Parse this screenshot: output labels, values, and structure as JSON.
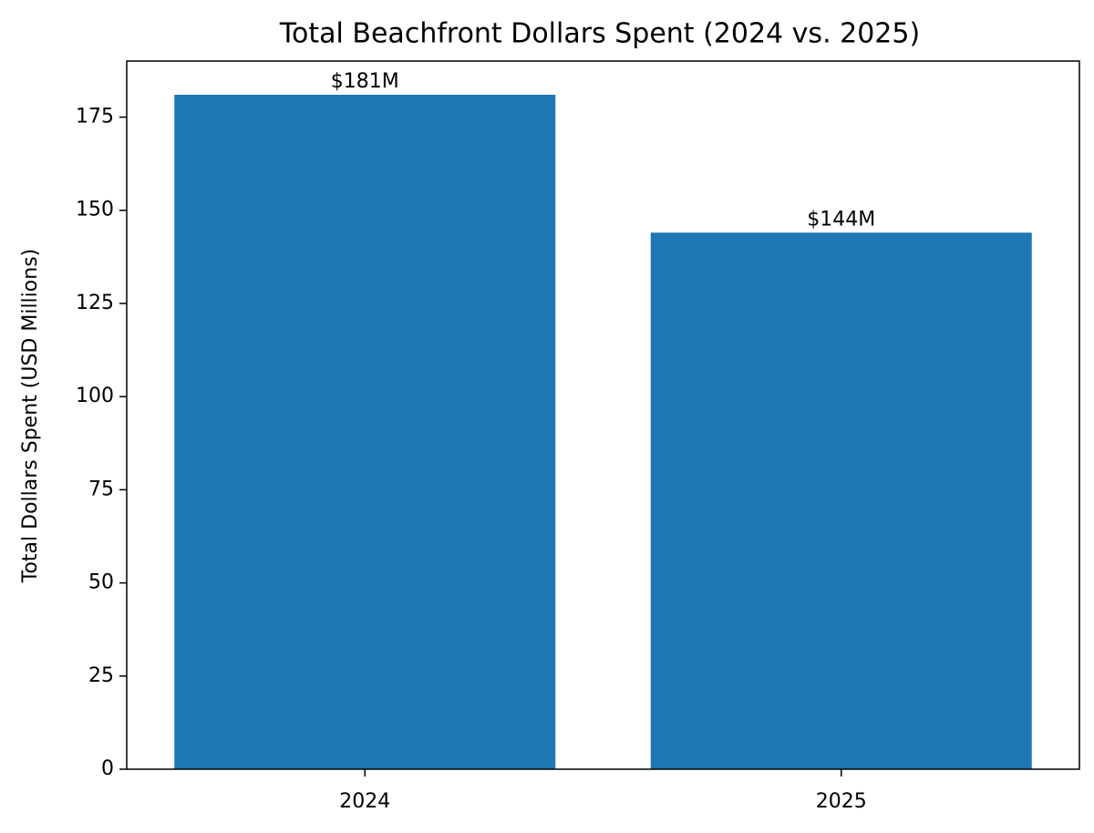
{
  "chart_data": {
    "type": "bar",
    "title": "Total Beachfront Dollars Spent (2024 vs. 2025)",
    "y_label": "Total Dollars Spent (USD Millions)",
    "categories": [
      "2024",
      "2025"
    ],
    "values": [
      181,
      144
    ],
    "value_labels": [
      "$181M",
      "$144M"
    ],
    "color": "#1f77b4",
    "ylim": [
      0,
      190.05
    ],
    "yticks": [
      0,
      25,
      50,
      75,
      100,
      125,
      150,
      175
    ],
    "grid": false
  }
}
